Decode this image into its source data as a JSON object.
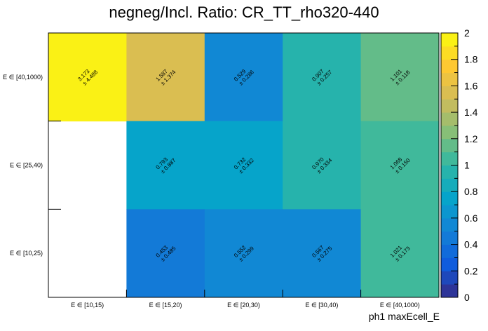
{
  "chart_data": {
    "type": "heatmap",
    "title": "negneg/Incl. Ratio: CR_TT_rho320-440",
    "xlabel": "ph1 maxEcell_E",
    "ylabel": "",
    "x_categories": [
      "E ∈ [10,15)",
      "E ∈ [15,20)",
      "E ∈ [20,30)",
      "E ∈ [30,40)",
      "E ∈ [40,1000)"
    ],
    "y_categories": [
      "E ∈ [10,25)",
      "E ∈ [25,40)",
      "E ∈ [40,1000)"
    ],
    "cells": [
      {
        "x": 0,
        "y": 2,
        "value": 3.173,
        "error": 4.488,
        "label": "3.173",
        "err_label": "± 4.488"
      },
      {
        "x": 1,
        "y": 2,
        "value": 1.587,
        "error": 1.374,
        "label": "1.587",
        "err_label": "± 1.374"
      },
      {
        "x": 2,
        "y": 2,
        "value": 0.529,
        "error": 0.286,
        "label": "0.529",
        "err_label": "± 0.286"
      },
      {
        "x": 3,
        "y": 2,
        "value": 0.907,
        "error": 0.257,
        "label": "0.907",
        "err_label": "± 0.257"
      },
      {
        "x": 4,
        "y": 2,
        "value": 1.101,
        "error": 0.118,
        "label": "1.101",
        "err_label": "± 0.118"
      },
      {
        "x": 1,
        "y": 1,
        "value": 0.793,
        "error": 0.887,
        "label": "0.793",
        "err_label": "± 0.887"
      },
      {
        "x": 2,
        "y": 1,
        "value": 0.732,
        "error": 0.332,
        "label": "0.732",
        "err_label": "± 0.332"
      },
      {
        "x": 3,
        "y": 1,
        "value": 0.97,
        "error": 0.334,
        "label": "0.970",
        "err_label": "± 0.334"
      },
      {
        "x": 4,
        "y": 1,
        "value": 1.068,
        "error": 0.15,
        "label": "1.068",
        "err_label": "± 0.150"
      },
      {
        "x": 1,
        "y": 0,
        "value": 0.453,
        "error": 0.485,
        "label": "0.453",
        "err_label": "± 0.485"
      },
      {
        "x": 2,
        "y": 0,
        "value": 0.552,
        "error": 0.299,
        "label": "0.552",
        "err_label": "± 0.299"
      },
      {
        "x": 3,
        "y": 0,
        "value": 0.567,
        "error": 0.275,
        "label": "0.567",
        "err_label": "± 0.275"
      },
      {
        "x": 4,
        "y": 0,
        "value": 1.021,
        "error": 0.173,
        "label": "1.021",
        "err_label": "± 0.173"
      }
    ],
    "zlim": [
      0,
      2
    ],
    "z_ticks": [
      "0",
      "0.2",
      "0.4",
      "0.6",
      "0.8",
      "1",
      "1.2",
      "1.4",
      "1.6",
      "1.8",
      "2"
    ],
    "palette": [
      "#352a87",
      "#0f5cdd",
      "#1481d6",
      "#06a4ca",
      "#2eb7a4",
      "#87bf77",
      "#d1bb59",
      "#fec832",
      "#f9fb0e"
    ],
    "grid": false,
    "legend": "color bar on right"
  }
}
